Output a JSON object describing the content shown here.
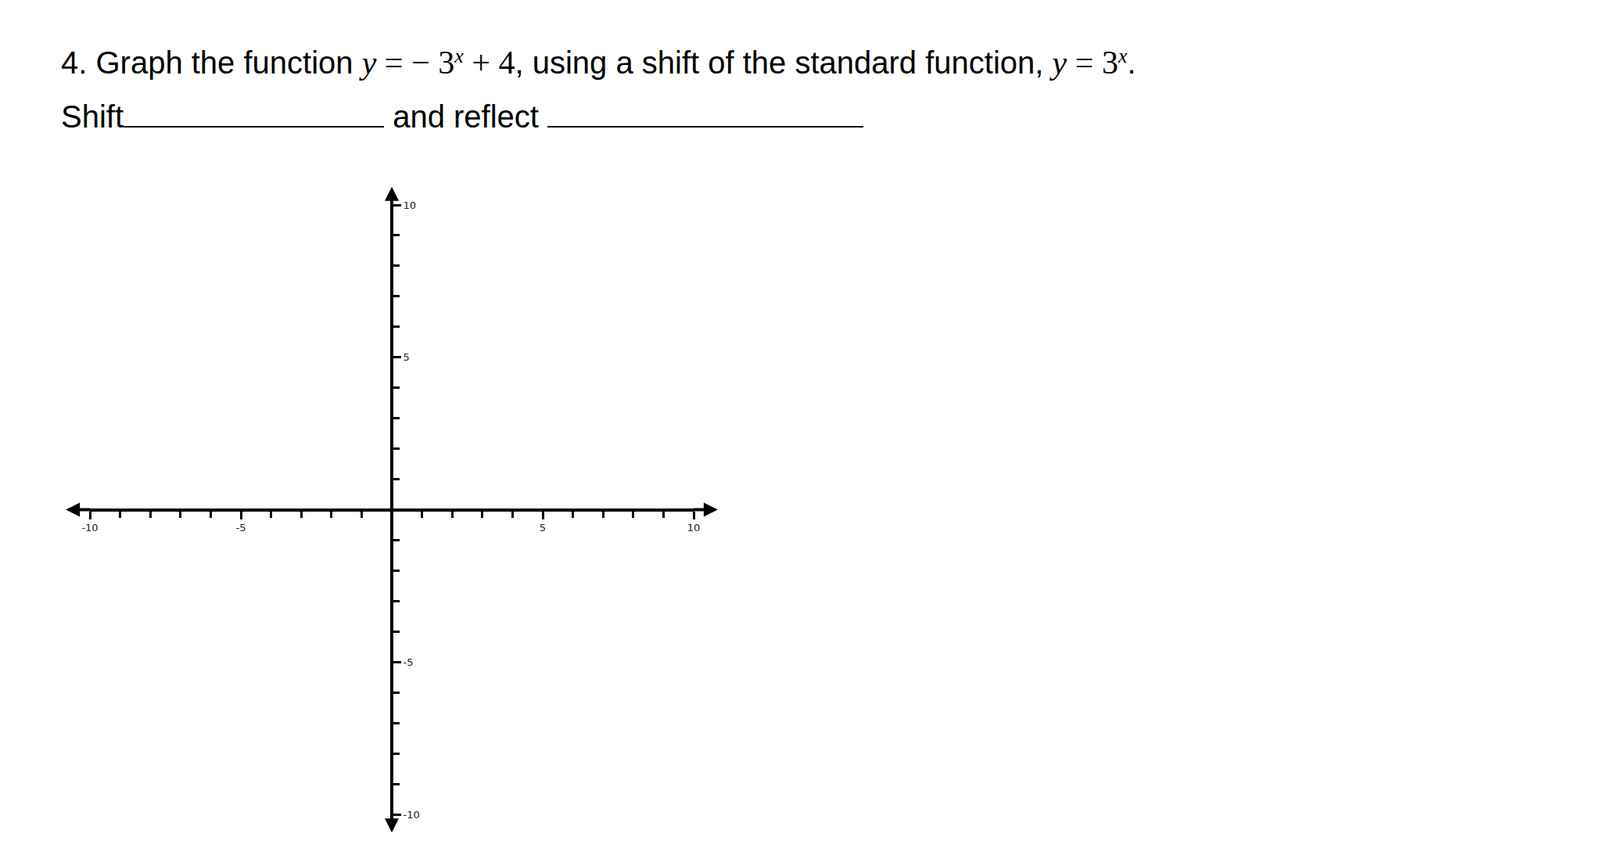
{
  "question": {
    "line1": [
      {
        "text": "4. Graph the function ",
        "style": "plain"
      },
      {
        "text": "y = − 3",
        "style": "math"
      },
      {
        "text": "x",
        "style": "sup"
      },
      {
        "text": " + 4",
        "style": "math"
      },
      {
        "text": ", using a shift of the standard function,  ",
        "style": "plain"
      },
      {
        "text": "y =  3",
        "style": "math"
      },
      {
        "text": "x",
        "style": "sup"
      },
      {
        "text": ".",
        "style": "plain"
      }
    ],
    "line2": [
      {
        "text": "Shift",
        "style": "plain"
      },
      {
        "text": "",
        "style": "blank"
      },
      {
        "text": " and reflect ",
        "style": "plain"
      },
      {
        "text": "",
        "style": "blank"
      }
    ]
  },
  "chart_data": {
    "type": "scatter",
    "xlim": [
      -10,
      10
    ],
    "ylim": [
      -10,
      10
    ],
    "xticks": [
      -10,
      -5,
      5,
      10
    ],
    "yticks": [
      -10,
      -5,
      5,
      10
    ],
    "grid": false
  }
}
